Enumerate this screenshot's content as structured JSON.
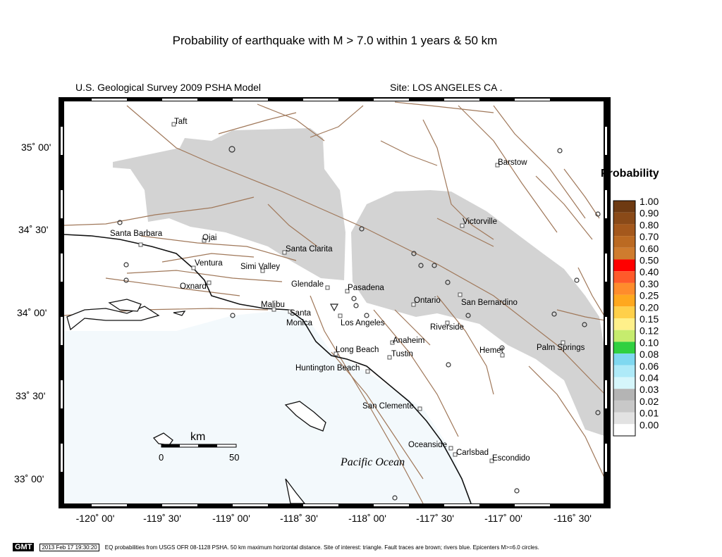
{
  "title": "Probability of earthquake with M > 7.0 within 1 years & 50 km",
  "model": "U.S. Geological Survey 2009 PSHA Model",
  "site": "Site: LOS  ANGELES CA .",
  "colors": {
    "gray": "#d3d3d3",
    "fault": "#a0785a",
    "coast": "#111111",
    "ocean": "#f3f9fc"
  },
  "lat_ticks": [
    "35˚ 00'",
    "34˚ 30'",
    "34˚ 00'",
    "33˚ 30'",
    "33˚ 00'"
  ],
  "lon_ticks": [
    "-120˚ 00'",
    "-119˚ 30'",
    "-119˚ 00'",
    "-118˚ 30'",
    "-118˚ 00'",
    "-117˚ 30'",
    "-117˚ 00'",
    "-116˚ 30'"
  ],
  "cities": [
    "Taft",
    "Barstow",
    "Victorville",
    "Santa Barbara",
    "Ojai",
    "Santa Clarita",
    "Ventura",
    "Simi Valley",
    "Oxnard",
    "Glendale",
    "Pasadena",
    "Malibu",
    "Santa",
    "Monica",
    "Ontario",
    "San Bernardino",
    "Los Angeles",
    "Riverside",
    "Anaheim",
    "Long Beach",
    "Tustin",
    "Hemet",
    "Palm Springs",
    "Huntington Beach",
    "San Clemente",
    "Oceanside",
    "Carlsbad",
    "Escondido"
  ],
  "ocean_label": "Pacific Ocean",
  "scale": {
    "unit": "km",
    "min": "0",
    "max": "50"
  },
  "legend": {
    "title": "Probability",
    "entries": [
      {
        "label": "1.00",
        "color": "#6e3a12"
      },
      {
        "label": "0.90",
        "color": "#8a4a18"
      },
      {
        "label": "0.80",
        "color": "#a4581c"
      },
      {
        "label": "0.70",
        "color": "#bb6a22"
      },
      {
        "label": "0.60",
        "color": "#cf7c2e"
      },
      {
        "label": "0.50",
        "color": "#ff0000"
      },
      {
        "label": "0.40",
        "color": "#ff5a2a"
      },
      {
        "label": "0.30",
        "color": "#ff8c2c"
      },
      {
        "label": "0.25",
        "color": "#ffa81e"
      },
      {
        "label": "0.20",
        "color": "#ffd04a"
      },
      {
        "label": "0.15",
        "color": "#fff08a"
      },
      {
        "label": "0.12",
        "color": "#c6ec6e"
      },
      {
        "label": "0.10",
        "color": "#30d040"
      },
      {
        "label": "0.08",
        "color": "#7fd8f0"
      },
      {
        "label": "0.06",
        "color": "#aeeaf8"
      },
      {
        "label": "0.04",
        "color": "#d6f6fb"
      },
      {
        "label": "0.03",
        "color": "#b4b4b4"
      },
      {
        "label": "0.02",
        "color": "#c8c8c8"
      },
      {
        "label": "0.01",
        "color": "#e2e2e2"
      },
      {
        "label": "0.00",
        "color": "#ffffff"
      }
    ]
  },
  "footer": {
    "logo": "GMT",
    "timestamp": "2013 Feb 17 19:30:20",
    "note": "EQ probabilities from USGS OFR 08-1128 PSHA. 50 km maximum horizontal distance. Site of interest: triangle. Fault traces are brown; rivers blue. Epicenters M>=6.0 circles."
  }
}
